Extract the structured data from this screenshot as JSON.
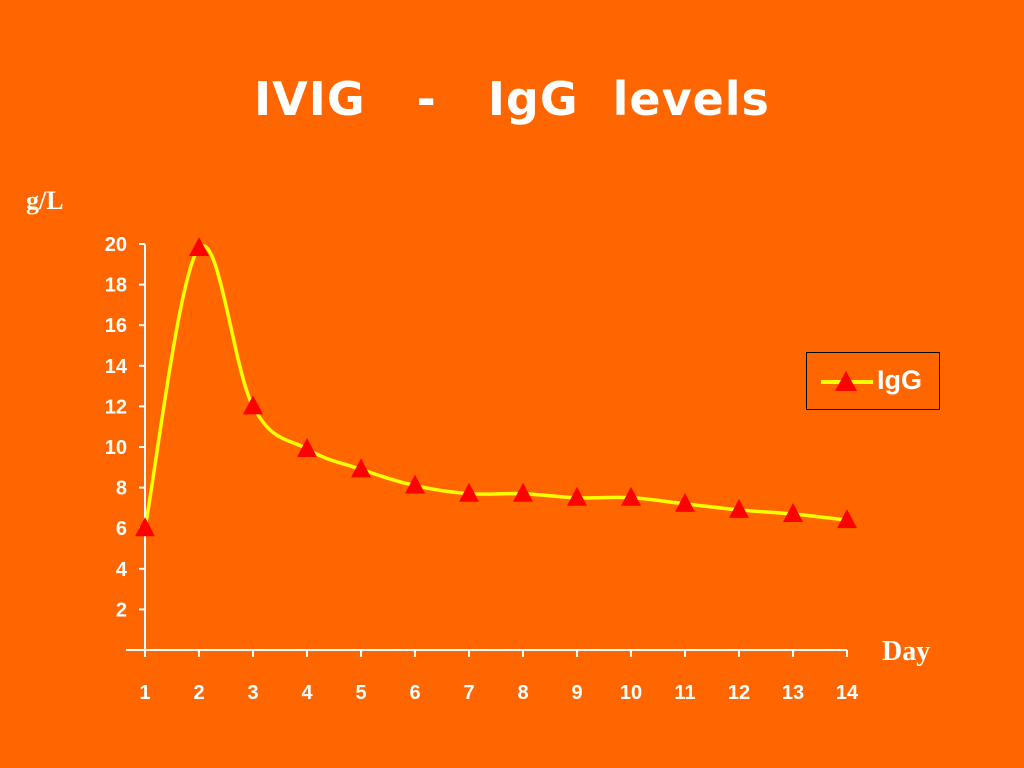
{
  "slide": {
    "title": "IVIG   -   IgG  levels"
  },
  "chart_data": {
    "type": "line",
    "title": "IVIG   -   IgG  levels",
    "xlabel": "Day",
    "ylabel": "g/L",
    "x": [
      1,
      2,
      3,
      4,
      5,
      6,
      7,
      8,
      9,
      10,
      11,
      12,
      13,
      14
    ],
    "x_tick_labels": [
      "1",
      "2",
      "3",
      "4",
      "5",
      "6",
      "7",
      "8",
      "9",
      "10",
      "11",
      "12",
      "13",
      "14"
    ],
    "y_tick_labels": [
      "2",
      "4",
      "6",
      "8",
      "10",
      "12",
      "14",
      "16",
      "18",
      "20"
    ],
    "ylim": [
      0,
      20
    ],
    "grid": false,
    "legend_position": "right",
    "series": [
      {
        "name": "IgG",
        "values": [
          6,
          19.8,
          12,
          9.9,
          8.9,
          8.1,
          7.7,
          7.7,
          7.5,
          7.5,
          7.2,
          6.9,
          6.7,
          6.4
        ],
        "line_color": "#ffff00",
        "marker": "triangle",
        "marker_color": "#ff0000"
      }
    ]
  },
  "colors": {
    "background": "#ff6600",
    "text": "#ffffff",
    "axis": "#ffffff"
  }
}
